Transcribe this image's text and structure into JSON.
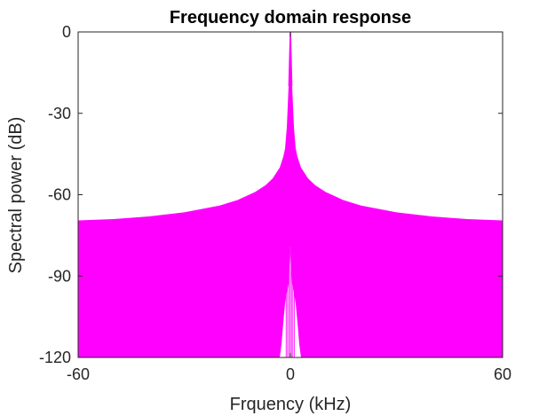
{
  "chart_data": {
    "type": "area",
    "title": "Frequency domain response",
    "xlabel": "Frquency (kHz)",
    "ylabel": "Spectral power (dB)",
    "xlim": [
      -60,
      60
    ],
    "ylim": [
      -120,
      0
    ],
    "xticks": [
      -60,
      0,
      60
    ],
    "yticks": [
      0,
      -30,
      -60,
      -90,
      -120
    ],
    "grid": false,
    "series": [
      {
        "color": "#ff00ff",
        "upper_envelope": {
          "x": [
            -60,
            -50,
            -40,
            -30,
            -20,
            -15,
            -10,
            -7,
            -5,
            -4,
            -3,
            -2,
            -1.5,
            -1,
            -0.5,
            0,
            0.5,
            1,
            1.5,
            2,
            3,
            4,
            5,
            7,
            10,
            15,
            20,
            30,
            40,
            50,
            60
          ],
          "y": [
            -69.5,
            -69,
            -68,
            -66.5,
            -64,
            -62,
            -59,
            -56.5,
            -54,
            -52,
            -50,
            -46,
            -43,
            -35,
            -20,
            0,
            -20,
            -35,
            -43,
            -46,
            -50,
            -52,
            -54,
            -56.5,
            -59,
            -62,
            -64,
            -66.5,
            -68,
            -69,
            -69.5
          ]
        },
        "lower_envelope": {
          "x": [
            -60,
            -3,
            -2.5,
            -2,
            -1.5,
            -1,
            -0.5,
            0,
            0.5,
            1,
            1.5,
            2,
            2.5,
            3,
            60
          ],
          "y": [
            -120,
            -120,
            -115,
            -107,
            -100,
            -96,
            -93,
            -79,
            -93,
            -96,
            -100,
            -107,
            -115,
            -120,
            -120
          ]
        }
      }
    ]
  }
}
